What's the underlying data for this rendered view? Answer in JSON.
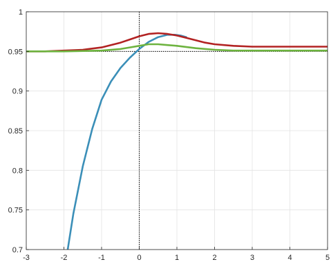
{
  "chart_data": {
    "type": "line",
    "title": "",
    "xlabel": "",
    "ylabel": "",
    "xlim": [
      -3,
      5
    ],
    "ylim": [
      0.7,
      1.0
    ],
    "grid": true,
    "legend": "none",
    "x_ticks": [
      -3,
      -2,
      -1,
      0,
      1,
      2,
      3,
      4,
      5
    ],
    "y_ticks": [
      0.7,
      0.75,
      0.8,
      0.85,
      0.9,
      0.95,
      1.0
    ],
    "x_tick_labels": [
      "-3",
      "-2",
      "-1",
      "0",
      "1",
      "2",
      "3",
      "4",
      "5"
    ],
    "y_tick_labels": [
      "0.7",
      "0.75",
      "0.8",
      "0.85",
      "0.9",
      "0.95",
      "1"
    ],
    "reference_lines": [
      {
        "orientation": "horizontal",
        "value": 0.95,
        "style": "dotted",
        "color": "#000000"
      },
      {
        "orientation": "vertical",
        "value": 0,
        "style": "dotted",
        "color": "#000000"
      }
    ],
    "series": [
      {
        "color": "#3B8FB8",
        "x": [
          -1.9,
          -1.75,
          -1.5,
          -1.25,
          -1.0,
          -0.75,
          -0.5,
          -0.25,
          0.0,
          0.25,
          0.5,
          0.75,
          0.95,
          1.1,
          1.25
        ],
        "y": [
          0.7,
          0.745,
          0.805,
          0.852,
          0.889,
          0.912,
          0.929,
          0.942,
          0.953,
          0.962,
          0.968,
          0.971,
          0.971,
          0.97,
          0.968
        ]
      },
      {
        "color": "#B22222",
        "x": [
          -3,
          -2.5,
          -2,
          -1.5,
          -1,
          -0.5,
          -0.25,
          0,
          0.25,
          0.5,
          0.75,
          1,
          1.25,
          1.5,
          1.75,
          2,
          2.5,
          3,
          3.5,
          4,
          4.5,
          5
        ],
        "y": [
          0.95,
          0.95,
          0.951,
          0.952,
          0.955,
          0.961,
          0.965,
          0.969,
          0.972,
          0.973,
          0.972,
          0.97,
          0.967,
          0.964,
          0.961,
          0.959,
          0.957,
          0.956,
          0.956,
          0.956,
          0.956,
          0.956
        ]
      },
      {
        "color": "#6DB33F",
        "x": [
          -3,
          -2,
          -1,
          -0.5,
          -0.25,
          0,
          0.25,
          0.5,
          0.75,
          1,
          1.5,
          2,
          2.5,
          3,
          4,
          5
        ],
        "y": [
          0.95,
          0.95,
          0.951,
          0.953,
          0.955,
          0.957,
          0.959,
          0.959,
          0.958,
          0.957,
          0.954,
          0.952,
          0.951,
          0.951,
          0.951,
          0.951
        ]
      }
    ]
  }
}
